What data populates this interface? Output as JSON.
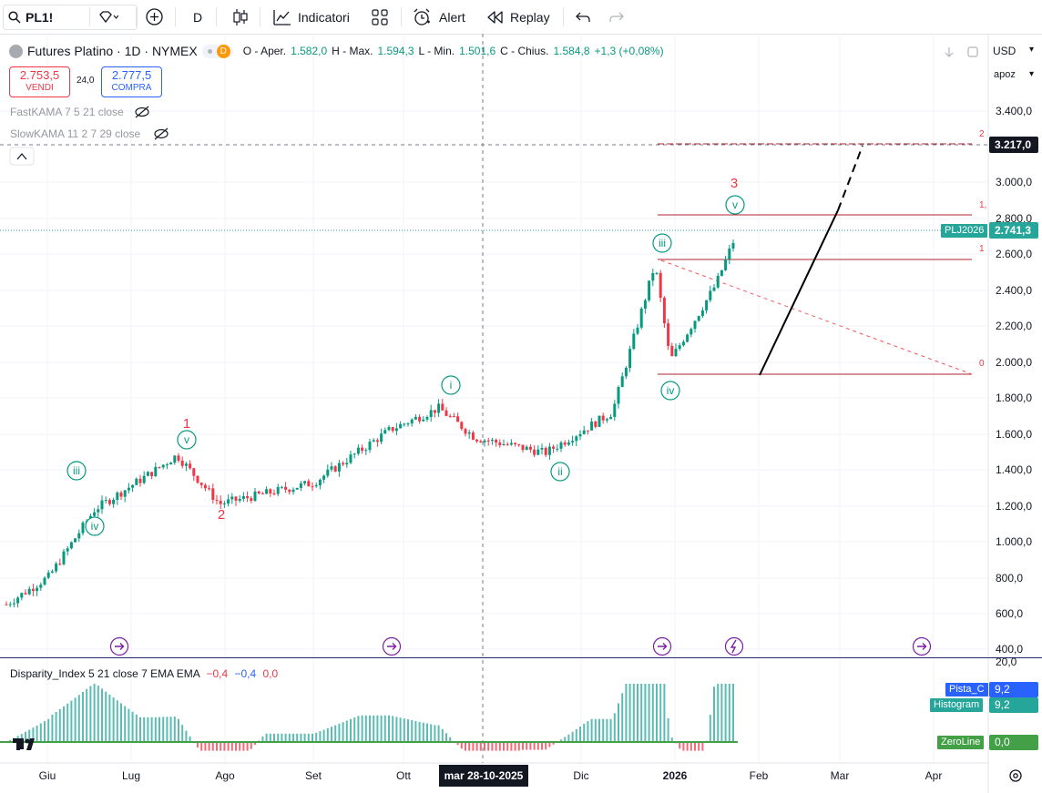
{
  "toolbar": {
    "symbol": "PL1!",
    "interval": "D",
    "indicators_label": "Indicatori",
    "alert_label": "Alert",
    "replay_label": "Replay"
  },
  "legend": {
    "title": "Futures Platino · 1D · NYMEX",
    "badge": "D",
    "open_label": "O - Aper.",
    "open_value": "1.582,0",
    "high_label": "H - Max.",
    "high_value": "1.594,3",
    "low_label": "L - Min.",
    "low_value": "1.501,6",
    "close_label": "C - Chius.",
    "close_value": "1.584,8",
    "change": "+1,3 (+0,08%)",
    "sell_price": "2.753,5",
    "sell_label": "VENDI",
    "spread": "24,0",
    "buy_price": "2.777,5",
    "buy_label": "COMPRA",
    "indicator1": "FastKAMA 7 5 21 close",
    "indicator2": "SlowKAMA 11 2 7 29 close"
  },
  "scale": {
    "currency": "USD",
    "mode": "apoz",
    "price_ticks": [
      "3.400,0",
      "3.000,0",
      "2.800,0",
      "2.600,0",
      "2.400,0",
      "2.200,0",
      "2.000,0",
      "1.800,0",
      "1.600,0",
      "1.400,0",
      "1.200,0",
      "1.000,0",
      "800,0",
      "600,0",
      "400,0"
    ],
    "crosshair_price": "3.217,0",
    "last_symbol": "PLJ2026",
    "last_price": "2.741,3"
  },
  "fib": {
    "level_2": "2",
    "level_1x": "1,",
    "level_1": "1",
    "level_0": "0"
  },
  "waves": {
    "w1": "1",
    "w2": "2",
    "w3": "3",
    "early_iii": "iii",
    "early_iv": "iv",
    "top_v": "v",
    "i": "i",
    "ii": "ii",
    "iii": "iii",
    "iv": "iv",
    "v": "v"
  },
  "oscillator": {
    "title": "Disparity_Index 5 21 close 7 EMA EMA",
    "v1": "−0,4",
    "v2": "−0,4",
    "v3": "0,0",
    "tick_top": "20,0",
    "pista_label": "Pista_C",
    "pista_value": "9,2",
    "hist_label": "Histogram",
    "hist_value": "9,2",
    "zero_label": "ZeroLine",
    "zero_value": "0,0"
  },
  "time_axis": {
    "labels": [
      "Giu",
      "Lug",
      "Ago",
      "Set",
      "Ott",
      "Dic",
      "2026",
      "Feb",
      "Mar",
      "Apr"
    ],
    "crosshair_date": "mar 28-10-2025"
  },
  "colors": {
    "up": "#089981",
    "down": "#f23645",
    "accent": "#2962ff",
    "fib": "#b2242f"
  },
  "chart_data": {
    "type": "candlestick",
    "symbol": "PL1!",
    "title": "Futures Platino · 1D · NYMEX",
    "y_axis_scale": "log",
    "ylim": [
      400,
      3500
    ],
    "x_range": [
      "2025-05",
      "2026-04"
    ],
    "approx_close_path": [
      {
        "date": "2025-05-27",
        "close": 1000
      },
      {
        "date": "2025-06-10",
        "close": 1080
      },
      {
        "date": "2025-06-25",
        "close": 1300
      },
      {
        "date": "2025-07-15",
        "close": 1450
      },
      {
        "date": "2025-07-22",
        "close": 1510
      },
      {
        "date": "2025-08-05",
        "close": 1320
      },
      {
        "date": "2025-09-05",
        "close": 1400
      },
      {
        "date": "2025-09-30",
        "close": 1620
      },
      {
        "date": "2025-10-16",
        "close": 1720
      },
      {
        "date": "2025-10-28",
        "close": 1585
      },
      {
        "date": "2025-11-20",
        "close": 1520
      },
      {
        "date": "2025-12-12",
        "close": 1700
      },
      {
        "date": "2025-12-26",
        "close": 2560
      },
      {
        "date": "2025-12-31",
        "close": 1960
      },
      {
        "date": "2026-01-15",
        "close": 2420
      },
      {
        "date": "2026-01-21",
        "close": 2741.3
      }
    ],
    "last_price": 2741.3,
    "horizontal_levels": [
      3217.0,
      2830,
      2580,
      1950
    ],
    "oscillator": {
      "name": "Disparity_Index 5 21 close 7 EMA EMA",
      "values_shown": [
        -0.4,
        -0.4,
        0.0
      ],
      "histogram_last": 9.2,
      "zero_line": 0.0
    }
  }
}
